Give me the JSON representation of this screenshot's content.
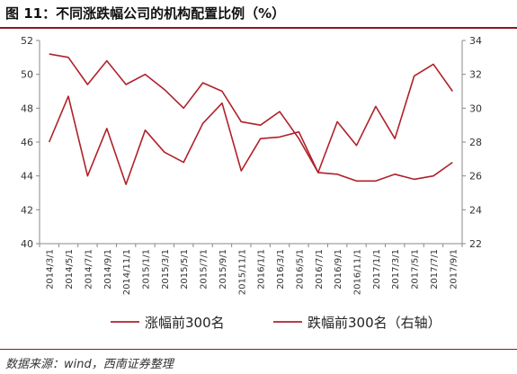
{
  "figure": {
    "title": "图 11：不同涨跌幅公司的机构配置比例（%）",
    "source": "数据来源：wind，西南证券整理"
  },
  "colors": {
    "series_line": "#b0212a",
    "axis": "#888888",
    "accent_rule": "#8a1a22"
  },
  "chart_data": {
    "type": "line",
    "categories": [
      "2014/3/1",
      "2014/5/1",
      "2014/7/1",
      "2014/9/1",
      "2014/11/1",
      "2015/1/1",
      "2015/3/1",
      "2015/5/1",
      "2015/7/1",
      "2015/9/1",
      "2015/11/1",
      "2016/1/1",
      "2016/3/1",
      "2016/5/1",
      "2016/7/1",
      "2016/9/1",
      "2016/11/1",
      "2017/1/1",
      "2017/3/1",
      "2017/5/1",
      "2017/7/1",
      "2017/9/1"
    ],
    "series": [
      {
        "name": "涨幅前300名",
        "axis": "left",
        "values": [
          46.0,
          48.7,
          44.0,
          46.8,
          43.5,
          46.7,
          45.4,
          44.8,
          47.1,
          48.3,
          44.3,
          46.2,
          46.3,
          46.6,
          44.2,
          47.2,
          45.8,
          48.1,
          46.2,
          49.9,
          50.6,
          49.0
        ]
      },
      {
        "name": "跌幅前300名（右轴）",
        "axis": "right",
        "values": [
          33.2,
          33.0,
          31.4,
          32.8,
          31.4,
          32.0,
          31.1,
          30.0,
          31.5,
          31.0,
          29.2,
          29.0,
          29.8,
          28.2,
          26.2,
          26.1,
          25.7,
          25.7,
          26.1,
          25.8,
          26.0,
          26.8
        ]
      }
    ],
    "y_left": {
      "lim": [
        40,
        52
      ],
      "ticks": [
        "40",
        "42",
        "44",
        "46",
        "48",
        "50",
        "52"
      ]
    },
    "y_right": {
      "lim": [
        22,
        34
      ],
      "ticks": [
        "22",
        "24",
        "26",
        "28",
        "30",
        "32",
        "34"
      ]
    },
    "grid": false,
    "legend_position": "bottom"
  }
}
